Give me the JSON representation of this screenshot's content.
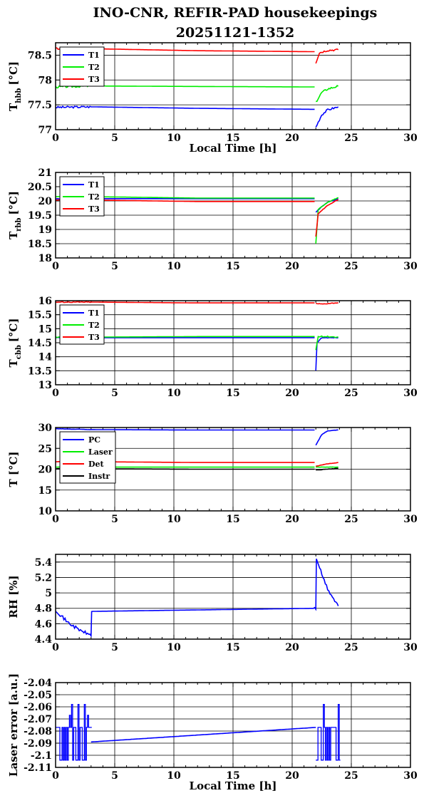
{
  "title": "INO-CNR, REFIR-PAD housekeepings",
  "subtitle": "20251121-1352",
  "colors": {
    "blue": "#0000ff",
    "green": "#00ee00",
    "red": "#ff0000",
    "black": "#000000"
  },
  "chart_data": [
    {
      "type": "line",
      "ylabel_main": "T",
      "ylabel_sub": "hbb",
      "ylabel_unit": "[°C]",
      "xlabel": "Local Time [h]",
      "xlim": [
        0,
        30
      ],
      "ylim": [
        77,
        78.75
      ],
      "xticks": [
        0,
        5,
        10,
        15,
        20,
        25,
        30
      ],
      "yticks": [
        77,
        77.5,
        78,
        78.5
      ],
      "ytick_labels": [
        "77",
        "77.5",
        "78",
        "78.5"
      ],
      "grid": true,
      "legend": "top-left",
      "series": [
        {
          "name": "T1",
          "color": "#0000ff",
          "noise": 0.02,
          "segments": [
            [
              [
                0,
                77.45
              ],
              [
                3,
                77.46
              ],
              [
                12,
                77.43
              ],
              [
                21.9,
                77.41
              ]
            ],
            [
              [
                22,
                77.05
              ],
              [
                22.5,
                77.3
              ],
              [
                23,
                77.4
              ],
              [
                23.9,
                77.46
              ]
            ]
          ]
        },
        {
          "name": "T2",
          "color": "#00ee00",
          "noise": 0.02,
          "segments": [
            [
              [
                0,
                77.86
              ],
              [
                3,
                77.88
              ],
              [
                12,
                77.87
              ],
              [
                21.9,
                77.86
              ]
            ],
            [
              [
                22,
                77.55
              ],
              [
                22.5,
                77.75
              ],
              [
                23,
                77.82
              ],
              [
                23.9,
                77.88
              ]
            ]
          ]
        },
        {
          "name": "T3",
          "color": "#ff0000",
          "noise": 0.02,
          "segments": [
            [
              [
                0,
                78.63
              ],
              [
                3,
                78.63
              ],
              [
                12,
                78.59
              ],
              [
                21.9,
                78.57
              ]
            ],
            [
              [
                22,
                78.35
              ],
              [
                22.3,
                78.55
              ],
              [
                23,
                78.6
              ],
              [
                23.9,
                78.61
              ]
            ]
          ]
        }
      ]
    },
    {
      "type": "line",
      "ylabel_main": "T",
      "ylabel_sub": "rbb",
      "ylabel_unit": "[°C]",
      "xlabel": "",
      "xlim": [
        0,
        30
      ],
      "ylim": [
        18,
        21
      ],
      "xticks": [
        0,
        5,
        10,
        15,
        20,
        25,
        30
      ],
      "yticks": [
        18,
        18.5,
        19,
        19.5,
        20,
        20.5,
        21
      ],
      "ytick_labels": [
        "18",
        "18.5",
        "19",
        "19.5",
        "20",
        "20.5",
        "21"
      ],
      "grid": true,
      "legend": "top-left",
      "series": [
        {
          "name": "T1",
          "color": "#0000ff",
          "noise": 0.01,
          "segments": [
            [
              [
                0,
                20.08
              ],
              [
                3,
                20.08
              ],
              [
                12,
                20.08
              ],
              [
                21.9,
                20.08
              ]
            ],
            [
              [
                22,
                19.6
              ],
              [
                22.5,
                19.8
              ],
              [
                23,
                19.95
              ],
              [
                23.9,
                20.08
              ]
            ]
          ]
        },
        {
          "name": "T2",
          "color": "#00ee00",
          "noise": 0.01,
          "segments": [
            [
              [
                0,
                20.15
              ],
              [
                3,
                20.15
              ],
              [
                12,
                20.1
              ],
              [
                21.9,
                20.1
              ]
            ],
            [
              [
                22,
                18.5
              ],
              [
                22.2,
                19.7
              ],
              [
                23,
                19.95
              ],
              [
                23.9,
                20.12
              ]
            ]
          ]
        },
        {
          "name": "T3",
          "color": "#ff0000",
          "noise": 0.01,
          "segments": [
            [
              [
                0,
                20.03
              ],
              [
                3,
                20.03
              ],
              [
                12,
                19.98
              ],
              [
                21.9,
                19.98
              ]
            ],
            [
              [
                22,
                18.75
              ],
              [
                22.2,
                19.55
              ],
              [
                23,
                19.85
              ],
              [
                23.9,
                20.05
              ]
            ]
          ]
        }
      ]
    },
    {
      "type": "line",
      "ylabel_main": "T",
      "ylabel_sub": "cbb",
      "ylabel_unit": "[°C]",
      "xlabel": "",
      "xlim": [
        0,
        30
      ],
      "ylim": [
        13,
        16
      ],
      "xticks": [
        0,
        5,
        10,
        15,
        20,
        25,
        30
      ],
      "yticks": [
        13,
        13.5,
        14,
        14.5,
        15,
        15.5,
        16
      ],
      "ytick_labels": [
        "13",
        "13.5",
        "14",
        "14.5",
        "15",
        "15.5",
        "16"
      ],
      "grid": true,
      "legend": "top-left",
      "series": [
        {
          "name": "T1",
          "color": "#0000ff",
          "noise": 0.01,
          "segments": [
            [
              [
                0,
                14.68
              ],
              [
                3,
                14.68
              ],
              [
                12,
                14.68
              ],
              [
                21.9,
                14.68
              ]
            ],
            [
              [
                22,
                13.5
              ],
              [
                22.1,
                14.5
              ],
              [
                22.5,
                14.68
              ],
              [
                23.9,
                14.68
              ]
            ]
          ]
        },
        {
          "name": "T2",
          "color": "#00ee00",
          "noise": 0.02,
          "segments": [
            [
              [
                0,
                14.7
              ],
              [
                3,
                14.7
              ],
              [
                12,
                14.72
              ],
              [
                21.9,
                14.72
              ]
            ],
            [
              [
                22,
                14.25
              ],
              [
                22.2,
                14.72
              ],
              [
                23,
                14.72
              ],
              [
                23.9,
                14.7
              ]
            ]
          ]
        },
        {
          "name": "T3",
          "color": "#ff0000",
          "noise": 0.015,
          "segments": [
            [
              [
                0,
                15.95
              ],
              [
                3,
                15.95
              ],
              [
                12,
                15.92
              ],
              [
                21.9,
                15.92
              ]
            ],
            [
              [
                22,
                15.9
              ],
              [
                22.5,
                15.88
              ],
              [
                23,
                15.9
              ],
              [
                23.9,
                15.93
              ]
            ]
          ]
        }
      ]
    },
    {
      "type": "line",
      "ylabel_main": "T [°C]",
      "ylabel_sub": "",
      "ylabel_unit": "",
      "xlabel": "",
      "xlim": [
        0,
        30
      ],
      "ylim": [
        10,
        30
      ],
      "xticks": [
        0,
        5,
        10,
        15,
        20,
        25,
        30
      ],
      "yticks": [
        10,
        15,
        20,
        25,
        30
      ],
      "ytick_labels": [
        "10",
        "15",
        "20",
        "25",
        "30"
      ],
      "grid": true,
      "legend": "top-left",
      "series": [
        {
          "name": "PC",
          "color": "#0000ff",
          "noise": 0.05,
          "segments": [
            [
              [
                0,
                29.7
              ],
              [
                3,
                29.5
              ],
              [
                12,
                29.4
              ],
              [
                21.9,
                29.4
              ]
            ],
            [
              [
                22,
                25.8
              ],
              [
                22.5,
                28.3
              ],
              [
                23,
                29.2
              ],
              [
                23.9,
                29.4
              ]
            ]
          ]
        },
        {
          "name": "Laser",
          "color": "#00ee00",
          "noise": 0.03,
          "segments": [
            [
              [
                0,
                20.5
              ],
              [
                3,
                20.5
              ],
              [
                12,
                20.5
              ],
              [
                21.9,
                20.5
              ]
            ],
            [
              [
                22,
                20.5
              ],
              [
                23,
                20.5
              ],
              [
                23.9,
                20.5
              ]
            ]
          ]
        },
        {
          "name": "Det",
          "color": "#ff0000",
          "noise": 0.03,
          "segments": [
            [
              [
                0,
                21.8
              ],
              [
                3,
                21.8
              ],
              [
                12,
                21.6
              ],
              [
                21.9,
                21.6
              ]
            ],
            [
              [
                22,
                20.7
              ],
              [
                23,
                21.3
              ],
              [
                23.9,
                21.6
              ]
            ]
          ]
        },
        {
          "name": "Instr",
          "color": "#000000",
          "noise": 0.05,
          "segments": [
            [
              [
                0,
                20.1
              ],
              [
                3,
                20.1
              ],
              [
                12,
                20.0
              ],
              [
                21.9,
                20.0
              ]
            ],
            [
              [
                22,
                19.8
              ],
              [
                23,
                20.0
              ],
              [
                23.9,
                20.2
              ]
            ]
          ]
        }
      ]
    },
    {
      "type": "line",
      "ylabel_main": "RH [%]",
      "ylabel_sub": "",
      "ylabel_unit": "",
      "xlabel": "",
      "xlim": [
        0,
        30
      ],
      "ylim": [
        4.4,
        5.5
      ],
      "xticks": [
        0,
        5,
        10,
        15,
        20,
        25,
        30
      ],
      "yticks": [
        4.4,
        4.6,
        4.8,
        5,
        5.2,
        5.4
      ],
      "ytick_labels": [
        "4.4",
        "4.6",
        "4.8",
        "5",
        "5.2",
        "5.4"
      ],
      "grid": true,
      "legend": "none",
      "series": [
        {
          "name": "",
          "color": "#0000ff",
          "noise": 0.02,
          "segments": [
            [
              [
                0,
                4.78
              ],
              [
                1,
                4.62
              ],
              [
                2,
                4.52
              ],
              [
                3,
                4.45
              ],
              [
                3.05,
                4.76
              ],
              [
                22,
                4.8
              ],
              [
                22.05,
                5.45
              ],
              [
                22.6,
                5.2
              ],
              [
                23,
                5.05
              ],
              [
                23.5,
                4.92
              ],
              [
                23.9,
                4.83
              ]
            ]
          ]
        }
      ]
    },
    {
      "type": "line",
      "ylabel_main": "Laser error [a.u.]",
      "ylabel_sub": "",
      "ylabel_unit": "",
      "xlabel": "Local Time [h]",
      "xlim": [
        0,
        30
      ],
      "ylim": [
        -2.11,
        -2.04
      ],
      "xticks": [
        0,
        5,
        10,
        15,
        20,
        25,
        30
      ],
      "yticks": [
        -2.11,
        -2.1,
        -2.09,
        -2.08,
        -2.07,
        -2.06,
        -2.05,
        -2.04
      ],
      "ytick_labels": [
        "-2.11",
        "-2.1",
        "-2.09",
        "-2.08",
        "-2.07",
        "-2.06",
        "-2.05",
        "-2.04"
      ],
      "grid": true,
      "legend": "none",
      "series": [
        {
          "name": "",
          "color": "#0000ff",
          "noise": 0,
          "segments": [
            [
              [
                3,
                -2.089
              ],
              [
                22,
                -2.077
              ]
            ]
          ]
        }
      ],
      "square_wave": {
        "color": "#0000ff",
        "levels": [
          -2.077,
          -2.104
        ],
        "spikes": [
          -2.067,
          -2.058
        ],
        "ranges": [
          [
            0,
            3
          ],
          [
            22,
            24
          ]
        ]
      }
    }
  ]
}
